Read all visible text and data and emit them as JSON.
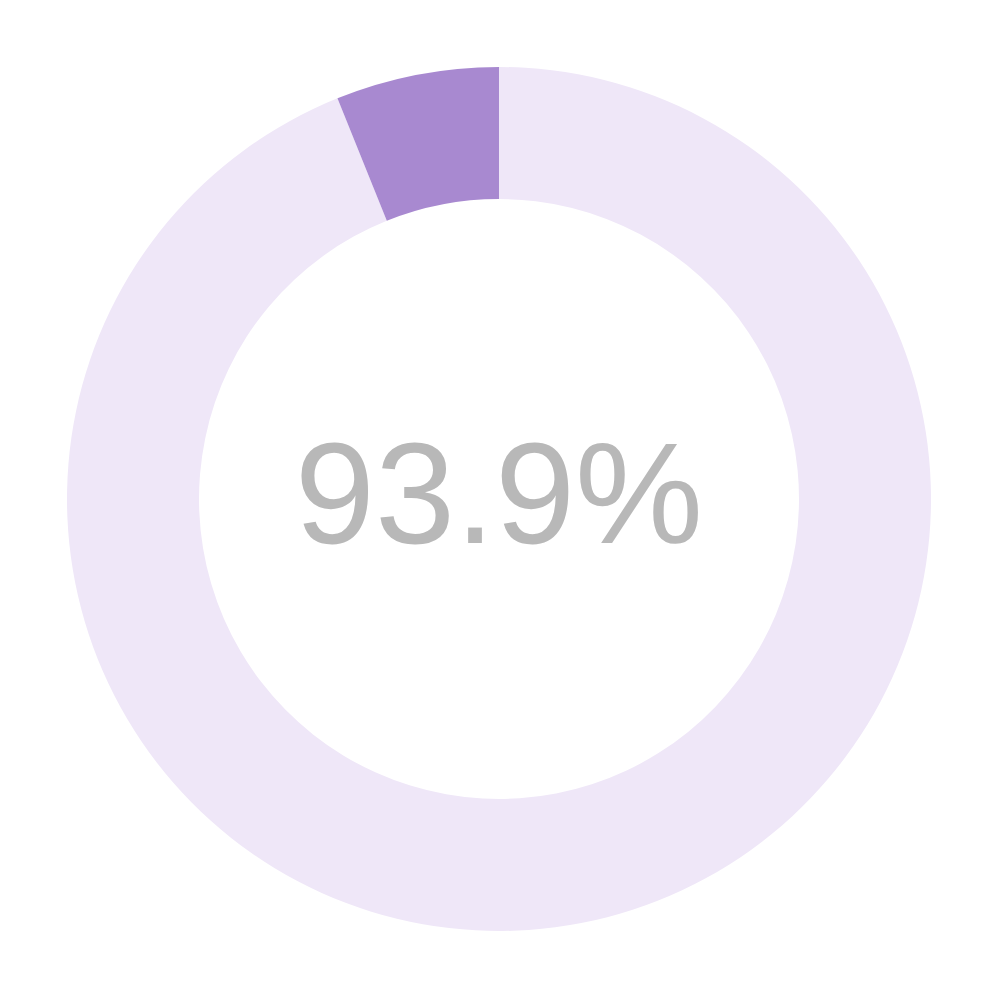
{
  "chart_data": {
    "type": "donut",
    "categories": [
      null,
      null
    ],
    "values": [
      93.9,
      6.1
    ],
    "colors": [
      "#efe7f8",
      "#a889d0"
    ],
    "annotations": [
      "93.9%"
    ],
    "legend": false
  }
}
